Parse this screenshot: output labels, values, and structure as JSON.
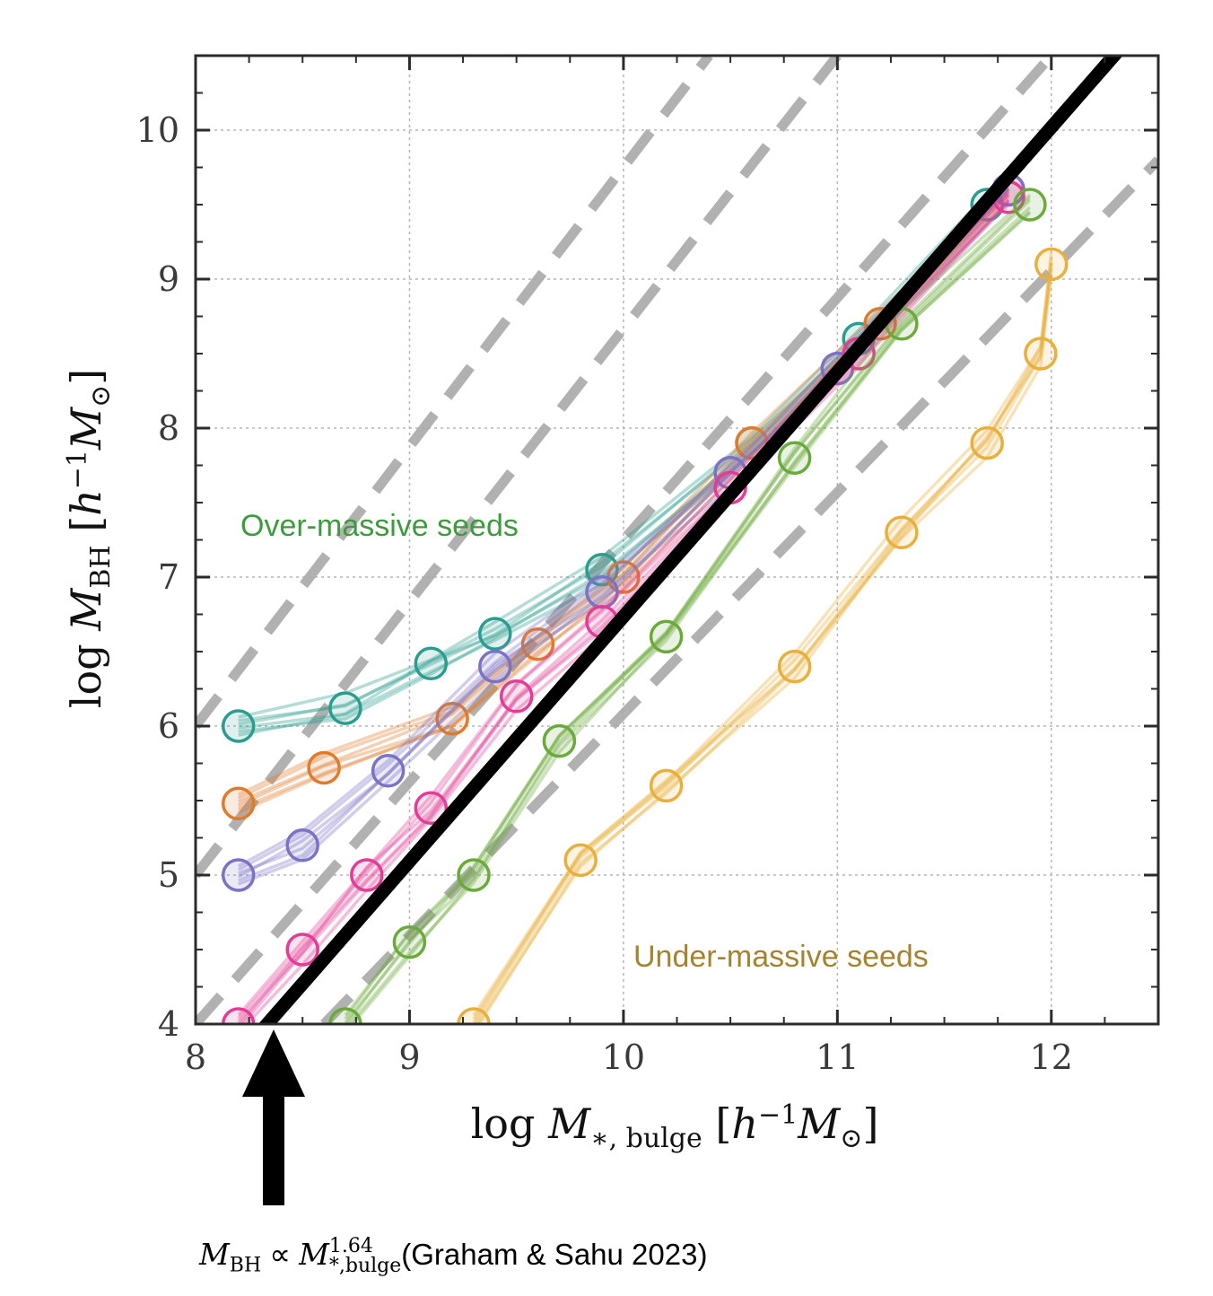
{
  "chart_data": {
    "type": "line",
    "title": "",
    "xlabel": "log M_{*, bulge} [h^{-1} M_⊙]",
    "ylabel": "log M_{BH} [h^{-1} M_⊙]",
    "xlim": [
      8,
      12.5
    ],
    "ylim": [
      4,
      10.5
    ],
    "xticks": [
      "8",
      "9",
      "10",
      "11",
      "12"
    ],
    "yticks": [
      "4",
      "5",
      "6",
      "7",
      "8",
      "9",
      "10"
    ],
    "grid": true,
    "reference_relation": {
      "slope": 1.64,
      "points": [
        [
          8.0,
          3.45
        ],
        [
          12.5,
          10.84
        ]
      ]
    },
    "offset_lines": [
      {
        "offset": 2,
        "points": [
          [
            8.0,
            6.0
          ],
          [
            10.4,
            10.5
          ]
        ]
      },
      {
        "offset": 1,
        "points": [
          [
            8.0,
            5.0
          ],
          [
            11.0,
            10.5
          ]
        ]
      },
      {
        "offset": -1,
        "points": [
          [
            8.0,
            4.0
          ],
          [
            12.0,
            10.5
          ]
        ]
      },
      {
        "offset": -2,
        "points": [
          [
            8.6,
            4.0
          ],
          [
            12.5,
            9.8
          ]
        ]
      }
    ],
    "series": [
      {
        "color": "#2a9d8f",
        "points": [
          [
            8.2,
            6.0
          ],
          [
            8.7,
            6.12
          ],
          [
            9.1,
            6.42
          ],
          [
            9.4,
            6.62
          ],
          [
            9.9,
            7.05
          ],
          [
            10.6,
            7.9
          ],
          [
            11.1,
            8.6
          ],
          [
            11.7,
            9.5
          ]
        ]
      },
      {
        "color": "#e07b2c",
        "points": [
          [
            8.2,
            5.48
          ],
          [
            8.6,
            5.72
          ],
          [
            9.2,
            6.05
          ],
          [
            9.6,
            6.55
          ],
          [
            10.0,
            7.0
          ],
          [
            10.6,
            7.9
          ],
          [
            11.2,
            8.7
          ],
          [
            11.8,
            9.6
          ]
        ]
      },
      {
        "color": "#7a72c6",
        "points": [
          [
            8.2,
            5.0
          ],
          [
            8.5,
            5.2
          ],
          [
            8.9,
            5.7
          ],
          [
            9.4,
            6.4
          ],
          [
            9.9,
            6.9
          ],
          [
            10.5,
            7.7
          ],
          [
            11.0,
            8.4
          ],
          [
            11.8,
            9.6
          ]
        ]
      },
      {
        "color": "#e33c96",
        "points": [
          [
            8.2,
            4.0
          ],
          [
            8.5,
            4.5
          ],
          [
            8.8,
            5.0
          ],
          [
            9.1,
            5.45
          ],
          [
            9.5,
            6.2
          ],
          [
            9.9,
            6.7
          ],
          [
            10.5,
            7.6
          ],
          [
            11.1,
            8.5
          ],
          [
            11.8,
            9.55
          ]
        ]
      },
      {
        "color": "#6aaa3a",
        "points": [
          [
            8.7,
            4.0
          ],
          [
            9.0,
            4.55
          ],
          [
            9.3,
            5.0
          ],
          [
            9.7,
            5.9
          ],
          [
            10.2,
            6.6
          ],
          [
            10.8,
            7.8
          ],
          [
            11.3,
            8.7
          ],
          [
            11.9,
            9.5
          ]
        ]
      },
      {
        "color": "#e8b03a",
        "points": [
          [
            9.3,
            4.0
          ],
          [
            9.8,
            5.1
          ],
          [
            10.2,
            5.6
          ],
          [
            10.8,
            6.4
          ],
          [
            11.3,
            7.3
          ],
          [
            11.7,
            7.9
          ],
          [
            11.95,
            8.5
          ],
          [
            12.0,
            9.1
          ]
        ]
      }
    ],
    "annotations": [
      "Over-massive seeds",
      "Under-massive seeds"
    ]
  },
  "ann_over": {
    "text": "Over-massive seeds",
    "color": "#3d9a3d"
  },
  "ann_under": {
    "text": "Under-massive seeds",
    "color": "#a3832f"
  },
  "footnote": {
    "lhs": "M",
    "lhs_sub": "BH",
    "prop": " ∝ ",
    "rhs": "M",
    "rhs_sup": "1.64",
    "rhs_sub": "*,bulge",
    "cite": "(Graham & Sahu 2023)"
  }
}
